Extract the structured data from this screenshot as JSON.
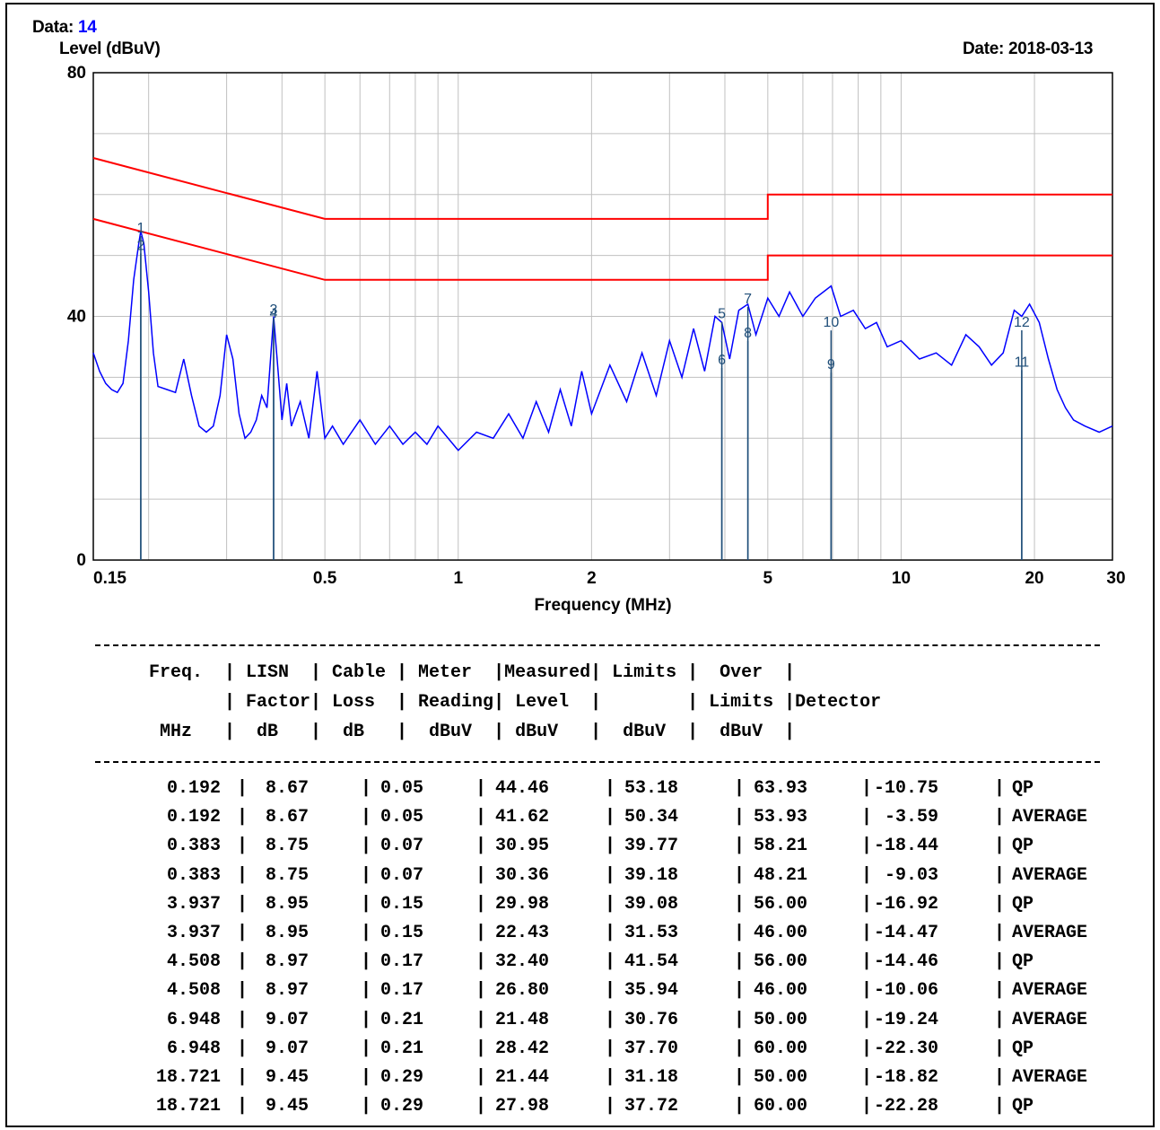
{
  "header": {
    "data_label": "Data:",
    "data_value": "14",
    "y_title": "Level (dBuV)",
    "date": "Date: 2018-03-13"
  },
  "chart_data": {
    "type": "line",
    "xlabel": "Frequency (MHz)",
    "ylabel": "Level (dBuV)",
    "x_scale": "log",
    "xlim": [
      0.15,
      30
    ],
    "ylim": [
      0,
      80
    ],
    "x_ticks": [
      0.15,
      0.5,
      1,
      2,
      5,
      10,
      20,
      30
    ],
    "x_tick_labels": [
      "0.15",
      "0.5",
      "1",
      "2",
      "5",
      "10",
      "20",
      "30"
    ],
    "y_tick_labels": [
      "80",
      "40",
      "0"
    ],
    "y_ticks": [
      80,
      40,
      0
    ],
    "grid": true,
    "series": [
      {
        "kind": "limit",
        "color": "#ff0000",
        "points": [
          [
            0.15,
            66
          ],
          [
            0.5,
            56
          ],
          [
            5,
            56
          ],
          [
            5,
            60
          ],
          [
            30,
            60
          ]
        ]
      },
      {
        "kind": "limit",
        "color": "#ff0000",
        "points": [
          [
            0.15,
            56
          ],
          [
            0.5,
            46
          ],
          [
            5,
            46
          ],
          [
            5,
            50
          ],
          [
            30,
            50
          ]
        ]
      },
      {
        "kind": "scan",
        "color": "#0000ff",
        "points": [
          [
            0.15,
            34
          ],
          [
            0.155,
            31
          ],
          [
            0.16,
            29
          ],
          [
            0.165,
            28
          ],
          [
            0.17,
            27.5
          ],
          [
            0.175,
            29
          ],
          [
            0.18,
            36
          ],
          [
            0.185,
            46
          ],
          [
            0.19,
            52
          ],
          [
            0.192,
            54
          ],
          [
            0.195,
            52
          ],
          [
            0.2,
            44
          ],
          [
            0.205,
            34
          ],
          [
            0.21,
            28.5
          ],
          [
            0.22,
            28
          ],
          [
            0.23,
            27.5
          ],
          [
            0.24,
            33
          ],
          [
            0.25,
            27
          ],
          [
            0.26,
            22
          ],
          [
            0.27,
            21
          ],
          [
            0.28,
            22
          ],
          [
            0.29,
            27
          ],
          [
            0.3,
            37
          ],
          [
            0.31,
            33
          ],
          [
            0.32,
            24
          ],
          [
            0.33,
            20
          ],
          [
            0.34,
            21
          ],
          [
            0.35,
            23
          ],
          [
            0.36,
            27
          ],
          [
            0.37,
            25
          ],
          [
            0.383,
            40
          ],
          [
            0.39,
            33
          ],
          [
            0.4,
            23
          ],
          [
            0.41,
            29
          ],
          [
            0.42,
            22
          ],
          [
            0.44,
            26
          ],
          [
            0.46,
            20
          ],
          [
            0.48,
            31
          ],
          [
            0.5,
            20
          ],
          [
            0.52,
            22
          ],
          [
            0.55,
            19
          ],
          [
            0.6,
            23
          ],
          [
            0.65,
            19
          ],
          [
            0.7,
            22
          ],
          [
            0.75,
            19
          ],
          [
            0.8,
            21
          ],
          [
            0.85,
            19
          ],
          [
            0.9,
            22
          ],
          [
            1.0,
            18
          ],
          [
            1.1,
            21
          ],
          [
            1.2,
            20
          ],
          [
            1.3,
            24
          ],
          [
            1.4,
            20
          ],
          [
            1.5,
            26
          ],
          [
            1.6,
            21
          ],
          [
            1.7,
            28
          ],
          [
            1.8,
            22
          ],
          [
            1.9,
            31
          ],
          [
            2.0,
            24
          ],
          [
            2.2,
            32
          ],
          [
            2.4,
            26
          ],
          [
            2.6,
            34
          ],
          [
            2.8,
            27
          ],
          [
            3.0,
            36
          ],
          [
            3.2,
            30
          ],
          [
            3.4,
            38
          ],
          [
            3.6,
            31
          ],
          [
            3.8,
            40
          ],
          [
            3.937,
            39
          ],
          [
            4.1,
            33
          ],
          [
            4.3,
            41
          ],
          [
            4.508,
            42
          ],
          [
            4.7,
            37
          ],
          [
            5.0,
            43
          ],
          [
            5.3,
            40
          ],
          [
            5.6,
            44
          ],
          [
            6.0,
            40
          ],
          [
            6.4,
            43
          ],
          [
            6.948,
            45
          ],
          [
            7.3,
            40
          ],
          [
            7.8,
            41
          ],
          [
            8.3,
            38
          ],
          [
            8.8,
            39
          ],
          [
            9.3,
            35
          ],
          [
            10,
            36
          ],
          [
            11,
            33
          ],
          [
            12,
            34
          ],
          [
            13,
            32
          ],
          [
            14,
            37
          ],
          [
            15,
            35
          ],
          [
            16,
            32
          ],
          [
            17,
            34
          ],
          [
            18,
            41
          ],
          [
            18.721,
            40
          ],
          [
            19.5,
            42
          ],
          [
            20.5,
            39
          ],
          [
            21.5,
            33
          ],
          [
            22.5,
            28
          ],
          [
            23.5,
            25
          ],
          [
            24.5,
            23
          ],
          [
            26,
            22
          ],
          [
            28,
            21
          ],
          [
            30,
            22
          ]
        ]
      }
    ],
    "markers": [
      {
        "label": "1",
        "freq": 0.192,
        "level": 53.18
      },
      {
        "label": "2",
        "freq": 0.192,
        "level": 50.34
      },
      {
        "label": "3",
        "freq": 0.383,
        "level": 39.77
      },
      {
        "label": "4",
        "freq": 0.383,
        "level": 39.18
      },
      {
        "label": "5",
        "freq": 3.937,
        "level": 39.08
      },
      {
        "label": "6",
        "freq": 3.937,
        "level": 31.53
      },
      {
        "label": "7",
        "freq": 4.508,
        "level": 41.54
      },
      {
        "label": "8",
        "freq": 4.508,
        "level": 35.94
      },
      {
        "label": "9",
        "freq": 6.948,
        "level": 30.76
      },
      {
        "label": "10",
        "freq": 6.948,
        "level": 37.7
      },
      {
        "label": "11",
        "freq": 18.721,
        "level": 31.18
      },
      {
        "label": "12",
        "freq": 18.721,
        "level": 37.72
      }
    ],
    "colors": {
      "scan": "#0000ff",
      "limit": "#ff0000",
      "marker": "#1f4e79",
      "grid": "#c0c0c0"
    }
  },
  "table": {
    "header_lines": [
      "Freq.  | LISN  | Cable | Meter  |Measured| Limits |  Over  |",
      "       | Factor| Loss  | Reading| Level  |        | Limits |Detector",
      " MHz   |  dB   |  dB   |  dBuV  | dBuV   |  dBuV  |  dBuV  |"
    ],
    "rows": [
      {
        "freq": "0.192",
        "lisn": "8.67",
        "cable": "0.05",
        "reading": "44.46",
        "level": "53.18",
        "limit": "63.93",
        "over": "-10.75",
        "detector": "QP"
      },
      {
        "freq": "0.192",
        "lisn": "8.67",
        "cable": "0.05",
        "reading": "41.62",
        "level": "50.34",
        "limit": "53.93",
        "over": " -3.59",
        "detector": "AVERAGE"
      },
      {
        "freq": "0.383",
        "lisn": "8.75",
        "cable": "0.07",
        "reading": "30.95",
        "level": "39.77",
        "limit": "58.21",
        "over": "-18.44",
        "detector": "QP"
      },
      {
        "freq": "0.383",
        "lisn": "8.75",
        "cable": "0.07",
        "reading": "30.36",
        "level": "39.18",
        "limit": "48.21",
        "over": " -9.03",
        "detector": "AVERAGE"
      },
      {
        "freq": "3.937",
        "lisn": "8.95",
        "cable": "0.15",
        "reading": "29.98",
        "level": "39.08",
        "limit": "56.00",
        "over": "-16.92",
        "detector": "QP"
      },
      {
        "freq": "3.937",
        "lisn": "8.95",
        "cable": "0.15",
        "reading": "22.43",
        "level": "31.53",
        "limit": "46.00",
        "over": "-14.47",
        "detector": "AVERAGE"
      },
      {
        "freq": "4.508",
        "lisn": "8.97",
        "cable": "0.17",
        "reading": "32.40",
        "level": "41.54",
        "limit": "56.00",
        "over": "-14.46",
        "detector": "QP"
      },
      {
        "freq": "4.508",
        "lisn": "8.97",
        "cable": "0.17",
        "reading": "26.80",
        "level": "35.94",
        "limit": "46.00",
        "over": "-10.06",
        "detector": "AVERAGE"
      },
      {
        "freq": "6.948",
        "lisn": "9.07",
        "cable": "0.21",
        "reading": "21.48",
        "level": "30.76",
        "limit": "50.00",
        "over": "-19.24",
        "detector": "AVERAGE"
      },
      {
        "freq": "6.948",
        "lisn": "9.07",
        "cable": "0.21",
        "reading": "28.42",
        "level": "37.70",
        "limit": "60.00",
        "over": "-22.30",
        "detector": "QP"
      },
      {
        "freq": "18.721",
        "lisn": "9.45",
        "cable": "0.29",
        "reading": "21.44",
        "level": "31.18",
        "limit": "50.00",
        "over": "-18.82",
        "detector": "AVERAGE"
      },
      {
        "freq": "18.721",
        "lisn": "9.45",
        "cable": "0.29",
        "reading": "27.98",
        "level": "37.72",
        "limit": "60.00",
        "over": "-22.28",
        "detector": "QP"
      }
    ]
  }
}
